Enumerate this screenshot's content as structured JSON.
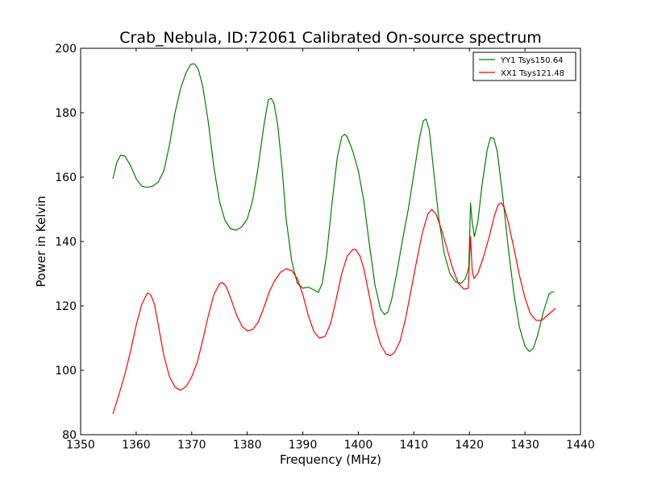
{
  "chart_data": {
    "type": "line",
    "title": "Crab_Nebula, ID:72061 Calibrated On-source spectrum",
    "xlabel": "Frequency (MHz)",
    "ylabel": "Power in Kelvin",
    "xlim": [
      1350,
      1440
    ],
    "ylim": [
      80,
      200
    ],
    "xticks": [
      1350,
      1360,
      1370,
      1380,
      1390,
      1400,
      1410,
      1420,
      1430,
      1440
    ],
    "yticks": [
      80,
      100,
      120,
      140,
      160,
      180,
      200
    ],
    "grid": false,
    "legend_position": "top-right",
    "series": [
      {
        "name": "YY1 Tsys150.64",
        "color": "#008000",
        "points": [
          [
            1355.8,
            159.5
          ],
          [
            1356.5,
            164.5
          ],
          [
            1357.2,
            166.8
          ],
          [
            1358.0,
            166.5
          ],
          [
            1359.0,
            163.5
          ],
          [
            1360.0,
            159.5
          ],
          [
            1361.0,
            157.2
          ],
          [
            1362.0,
            156.8
          ],
          [
            1363.0,
            157.2
          ],
          [
            1364.0,
            158.5
          ],
          [
            1365.0,
            162.0
          ],
          [
            1366.0,
            170.0
          ],
          [
            1367.0,
            180.0
          ],
          [
            1368.0,
            187.5
          ],
          [
            1369.0,
            192.5
          ],
          [
            1369.8,
            195.0
          ],
          [
            1370.5,
            195.2
          ],
          [
            1371.2,
            193.5
          ],
          [
            1372.0,
            188.0
          ],
          [
            1373.0,
            177.0
          ],
          [
            1374.0,
            163.0
          ],
          [
            1375.0,
            152.5
          ],
          [
            1376.0,
            146.5
          ],
          [
            1377.0,
            144.0
          ],
          [
            1378.0,
            143.5
          ],
          [
            1379.0,
            144.5
          ],
          [
            1380.0,
            147.0
          ],
          [
            1381.0,
            153.0
          ],
          [
            1382.0,
            163.5
          ],
          [
            1383.0,
            176.0
          ],
          [
            1383.8,
            184.0
          ],
          [
            1384.3,
            184.5
          ],
          [
            1384.8,
            183.0
          ],
          [
            1385.5,
            176.0
          ],
          [
            1386.3,
            162.0
          ],
          [
            1387.0,
            147.0
          ],
          [
            1388.0,
            134.0
          ],
          [
            1389.0,
            127.0
          ],
          [
            1390.0,
            125.5
          ],
          [
            1391.0,
            125.8
          ],
          [
            1392.0,
            125.0
          ],
          [
            1392.8,
            124.2
          ],
          [
            1393.5,
            127.0
          ],
          [
            1394.3,
            136.0
          ],
          [
            1395.2,
            151.0
          ],
          [
            1396.2,
            166.0
          ],
          [
            1397.0,
            172.5
          ],
          [
            1397.5,
            173.3
          ],
          [
            1398.0,
            172.5
          ],
          [
            1399.0,
            168.0
          ],
          [
            1400.0,
            162.0
          ],
          [
            1401.0,
            152.5
          ],
          [
            1402.0,
            139.0
          ],
          [
            1403.0,
            126.5
          ],
          [
            1404.0,
            119.0
          ],
          [
            1404.7,
            117.3
          ],
          [
            1405.3,
            118.0
          ],
          [
            1406.0,
            122.0
          ],
          [
            1407.0,
            131.0
          ],
          [
            1408.0,
            141.0
          ],
          [
            1409.0,
            150.0
          ],
          [
            1410.0,
            161.0
          ],
          [
            1411.0,
            172.0
          ],
          [
            1411.7,
            177.5
          ],
          [
            1412.2,
            178.0
          ],
          [
            1412.8,
            174.5
          ],
          [
            1413.5,
            163.0
          ],
          [
            1414.5,
            147.0
          ],
          [
            1415.5,
            136.0
          ],
          [
            1416.5,
            130.0
          ],
          [
            1417.5,
            127.5
          ],
          [
            1418.5,
            127.0
          ],
          [
            1419.3,
            128.5
          ],
          [
            1419.9,
            132.0
          ],
          [
            1420.2,
            152.0
          ],
          [
            1420.5,
            146.0
          ],
          [
            1420.9,
            141.5
          ],
          [
            1421.5,
            146.0
          ],
          [
            1422.3,
            158.0
          ],
          [
            1423.2,
            168.5
          ],
          [
            1423.8,
            172.3
          ],
          [
            1424.4,
            172.0
          ],
          [
            1425.0,
            168.0
          ],
          [
            1426.0,
            154.0
          ],
          [
            1427.0,
            138.0
          ],
          [
            1428.0,
            124.0
          ],
          [
            1429.0,
            113.5
          ],
          [
            1430.0,
            107.5
          ],
          [
            1430.8,
            105.8
          ],
          [
            1431.5,
            106.8
          ],
          [
            1432.3,
            111.0
          ],
          [
            1433.3,
            118.0
          ],
          [
            1434.3,
            123.5
          ],
          [
            1434.8,
            124.3
          ],
          [
            1435.3,
            124.2
          ]
        ]
      },
      {
        "name": "XX1 Tsys121.48",
        "color": "#ff0000",
        "points": [
          [
            1355.8,
            86.5
          ],
          [
            1357.0,
            93.0
          ],
          [
            1358.0,
            99.0
          ],
          [
            1359.0,
            106.0
          ],
          [
            1360.0,
            114.0
          ],
          [
            1361.0,
            120.5
          ],
          [
            1362.0,
            124.0
          ],
          [
            1362.6,
            123.5
          ],
          [
            1363.3,
            120.5
          ],
          [
            1364.0,
            114.0
          ],
          [
            1365.0,
            104.5
          ],
          [
            1366.0,
            98.0
          ],
          [
            1367.0,
            94.8
          ],
          [
            1368.0,
            93.8
          ],
          [
            1369.0,
            95.0
          ],
          [
            1370.0,
            98.0
          ],
          [
            1371.0,
            102.5
          ],
          [
            1372.0,
            109.5
          ],
          [
            1373.0,
            117.0
          ],
          [
            1374.0,
            123.5
          ],
          [
            1375.0,
            126.8
          ],
          [
            1375.5,
            127.3
          ],
          [
            1376.2,
            126.0
          ],
          [
            1377.0,
            122.5
          ],
          [
            1378.0,
            117.5
          ],
          [
            1379.0,
            113.8
          ],
          [
            1380.0,
            112.2
          ],
          [
            1381.0,
            112.7
          ],
          [
            1382.0,
            115.0
          ],
          [
            1383.0,
            119.5
          ],
          [
            1384.0,
            124.5
          ],
          [
            1385.0,
            128.0
          ],
          [
            1386.0,
            130.5
          ],
          [
            1387.0,
            131.5
          ],
          [
            1388.0,
            131.0
          ],
          [
            1389.0,
            128.5
          ],
          [
            1390.0,
            123.5
          ],
          [
            1391.0,
            117.0
          ],
          [
            1392.0,
            112.0
          ],
          [
            1393.0,
            110.0
          ],
          [
            1394.0,
            110.5
          ],
          [
            1395.0,
            114.5
          ],
          [
            1396.0,
            122.0
          ],
          [
            1397.0,
            130.0
          ],
          [
            1398.0,
            135.5
          ],
          [
            1399.0,
            137.5
          ],
          [
            1399.5,
            137.6
          ],
          [
            1400.3,
            135.5
          ],
          [
            1401.0,
            131.5
          ],
          [
            1402.0,
            123.0
          ],
          [
            1403.0,
            114.0
          ],
          [
            1404.0,
            108.0
          ],
          [
            1405.0,
            105.0
          ],
          [
            1405.8,
            104.6
          ],
          [
            1406.5,
            105.5
          ],
          [
            1407.5,
            109.0
          ],
          [
            1408.5,
            116.0
          ],
          [
            1409.5,
            125.0
          ],
          [
            1410.5,
            134.0
          ],
          [
            1411.5,
            142.5
          ],
          [
            1412.5,
            148.5
          ],
          [
            1413.2,
            150.0
          ],
          [
            1414.0,
            148.5
          ],
          [
            1415.0,
            143.5
          ],
          [
            1416.0,
            137.5
          ],
          [
            1417.0,
            131.5
          ],
          [
            1418.0,
            127.0
          ],
          [
            1419.0,
            125.2
          ],
          [
            1419.8,
            125.5
          ],
          [
            1420.2,
            141.5
          ],
          [
            1420.5,
            131.0
          ],
          [
            1420.8,
            128.5
          ],
          [
            1421.5,
            130.0
          ],
          [
            1422.5,
            135.0
          ],
          [
            1423.5,
            141.0
          ],
          [
            1424.5,
            148.0
          ],
          [
            1425.2,
            151.5
          ],
          [
            1425.7,
            152.0
          ],
          [
            1426.3,
            150.5
          ],
          [
            1427.0,
            146.0
          ],
          [
            1428.0,
            138.0
          ],
          [
            1429.0,
            129.5
          ],
          [
            1430.0,
            122.5
          ],
          [
            1431.0,
            117.5
          ],
          [
            1432.0,
            115.5
          ],
          [
            1433.0,
            115.5
          ],
          [
            1434.0,
            117.0
          ],
          [
            1435.0,
            118.5
          ],
          [
            1435.5,
            119.3
          ]
        ]
      }
    ]
  }
}
